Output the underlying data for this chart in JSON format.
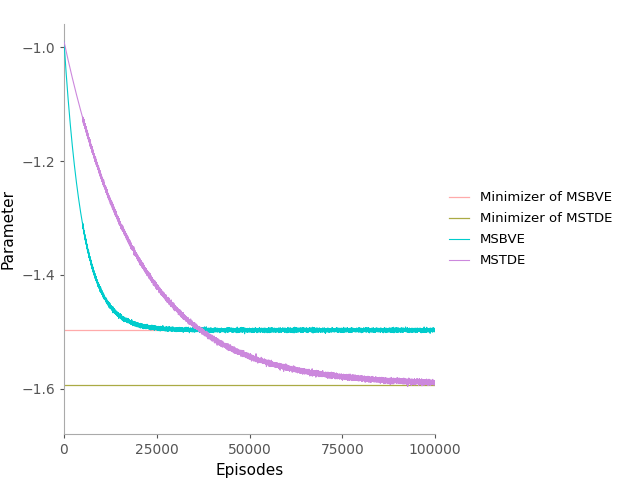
{
  "title": "",
  "xlabel": "Episodes",
  "ylabel": "Parameter",
  "xlim": [
    0,
    100000
  ],
  "ylim": [
    -1.68,
    -0.96
  ],
  "n_episodes": 100001,
  "msbve_start": -0.99,
  "msbve_end": -1.497,
  "mstde_start": -0.99,
  "mstde_end": -1.593,
  "tau_msbve": 5000,
  "tau_mstde": 20000,
  "minimizer_msbve": -1.497,
  "minimizer_mstde": -1.593,
  "color_msbve": "#00CCCC",
  "color_mstde": "#CC88DD",
  "color_min_msbve": "#FFAAAA",
  "color_min_mstde": "#AAAA44",
  "legend_labels": [
    "Minimizer of MSBVE",
    "Minimizer of MSTDE",
    "MSBVE",
    "MSTDE"
  ],
  "yticks": [
    -1.0,
    -1.2,
    -1.4,
    -1.6
  ],
  "xticks": [
    0,
    25000,
    50000,
    75000,
    100000
  ],
  "noise_start": 5000,
  "noise_scale_msbve": 0.0015,
  "noise_scale_mstde": 0.002,
  "xlabel_fontsize": 11,
  "ylabel_fontsize": 11,
  "tick_fontsize": 10,
  "legend_fontsize": 9.5
}
